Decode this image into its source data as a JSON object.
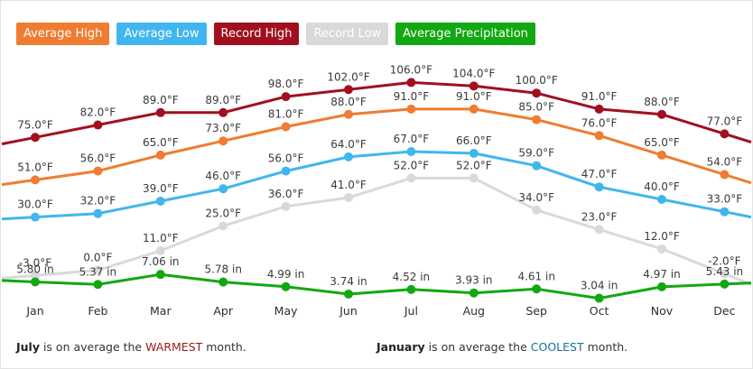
{
  "chart_data": {
    "type": "line",
    "categories": [
      "Jan",
      "Feb",
      "Mar",
      "Apr",
      "May",
      "Jun",
      "Jul",
      "Aug",
      "Sep",
      "Oct",
      "Nov",
      "Dec"
    ],
    "series": [
      {
        "name": "Average High",
        "color": "#ef7c30",
        "values": [
          51,
          56,
          65,
          73,
          81,
          88,
          91,
          91,
          85,
          76,
          65,
          54
        ],
        "labels": [
          "51.0°F",
          "56.0°F",
          "65.0°F",
          "73.0°F",
          "81.0°F",
          "88.0°F",
          "91.0°F",
          "91.0°F",
          "85.0°F",
          "76.0°F",
          "65.0°F",
          "54.0°F"
        ]
      },
      {
        "name": "Average Low",
        "color": "#41b6ee",
        "values": [
          30,
          32,
          39,
          46,
          56,
          64,
          67,
          66,
          59,
          47,
          40,
          33
        ],
        "labels": [
          "30.0°F",
          "32.0°F",
          "39.0°F",
          "46.0°F",
          "56.0°F",
          "64.0°F",
          "67.0°F",
          "66.0°F",
          "59.0°F",
          "47.0°F",
          "40.0°F",
          "33.0°F"
        ]
      },
      {
        "name": "Record High",
        "color": "#a1101f",
        "values": [
          75,
          82,
          89,
          89,
          98,
          102,
          106,
          104,
          100,
          91,
          88,
          77
        ],
        "labels": [
          "75.0°F",
          "82.0°F",
          "89.0°F",
          "89.0°F",
          "98.0°F",
          "102.0°F",
          "106.0°F",
          "104.0°F",
          "100.0°F",
          "91.0°F",
          "88.0°F",
          "77.0°F"
        ]
      },
      {
        "name": "Record Low",
        "color": "#d9d9d9",
        "values": [
          -3,
          0,
          11,
          25,
          36,
          41,
          52,
          52,
          34,
          23,
          12,
          -2
        ],
        "labels": [
          "-3.0°F",
          "0.0°F",
          "11.0°F",
          "25.0°F",
          "36.0°F",
          "41.0°F",
          "52.0°F",
          "52.0°F",
          "34.0°F",
          "23.0°F",
          "12.0°F",
          "-2.0°F"
        ]
      },
      {
        "name": "Average Precipitation",
        "color": "#11a811",
        "values": [
          5.8,
          5.37,
          7.06,
          5.78,
          4.99,
          3.74,
          4.52,
          3.93,
          4.61,
          3.04,
          4.97,
          5.43
        ],
        "labels": [
          "5.80 in",
          "5.37 in",
          "7.06 in",
          "5.78 in",
          "4.99 in",
          "3.74 in",
          "4.52 in",
          "3.93 in",
          "4.61 in",
          "3.04 in",
          "4.97 in",
          "5.43 in"
        ]
      }
    ],
    "grid": false,
    "legend_placement": "top-left"
  },
  "footer": {
    "left": {
      "month": "July",
      "text": " is on average the ",
      "emphasis": "WARMEST",
      "suffix": " month."
    },
    "right": {
      "month": "January",
      "text": " is on average the ",
      "emphasis": "COOLEST",
      "suffix": " month."
    }
  }
}
